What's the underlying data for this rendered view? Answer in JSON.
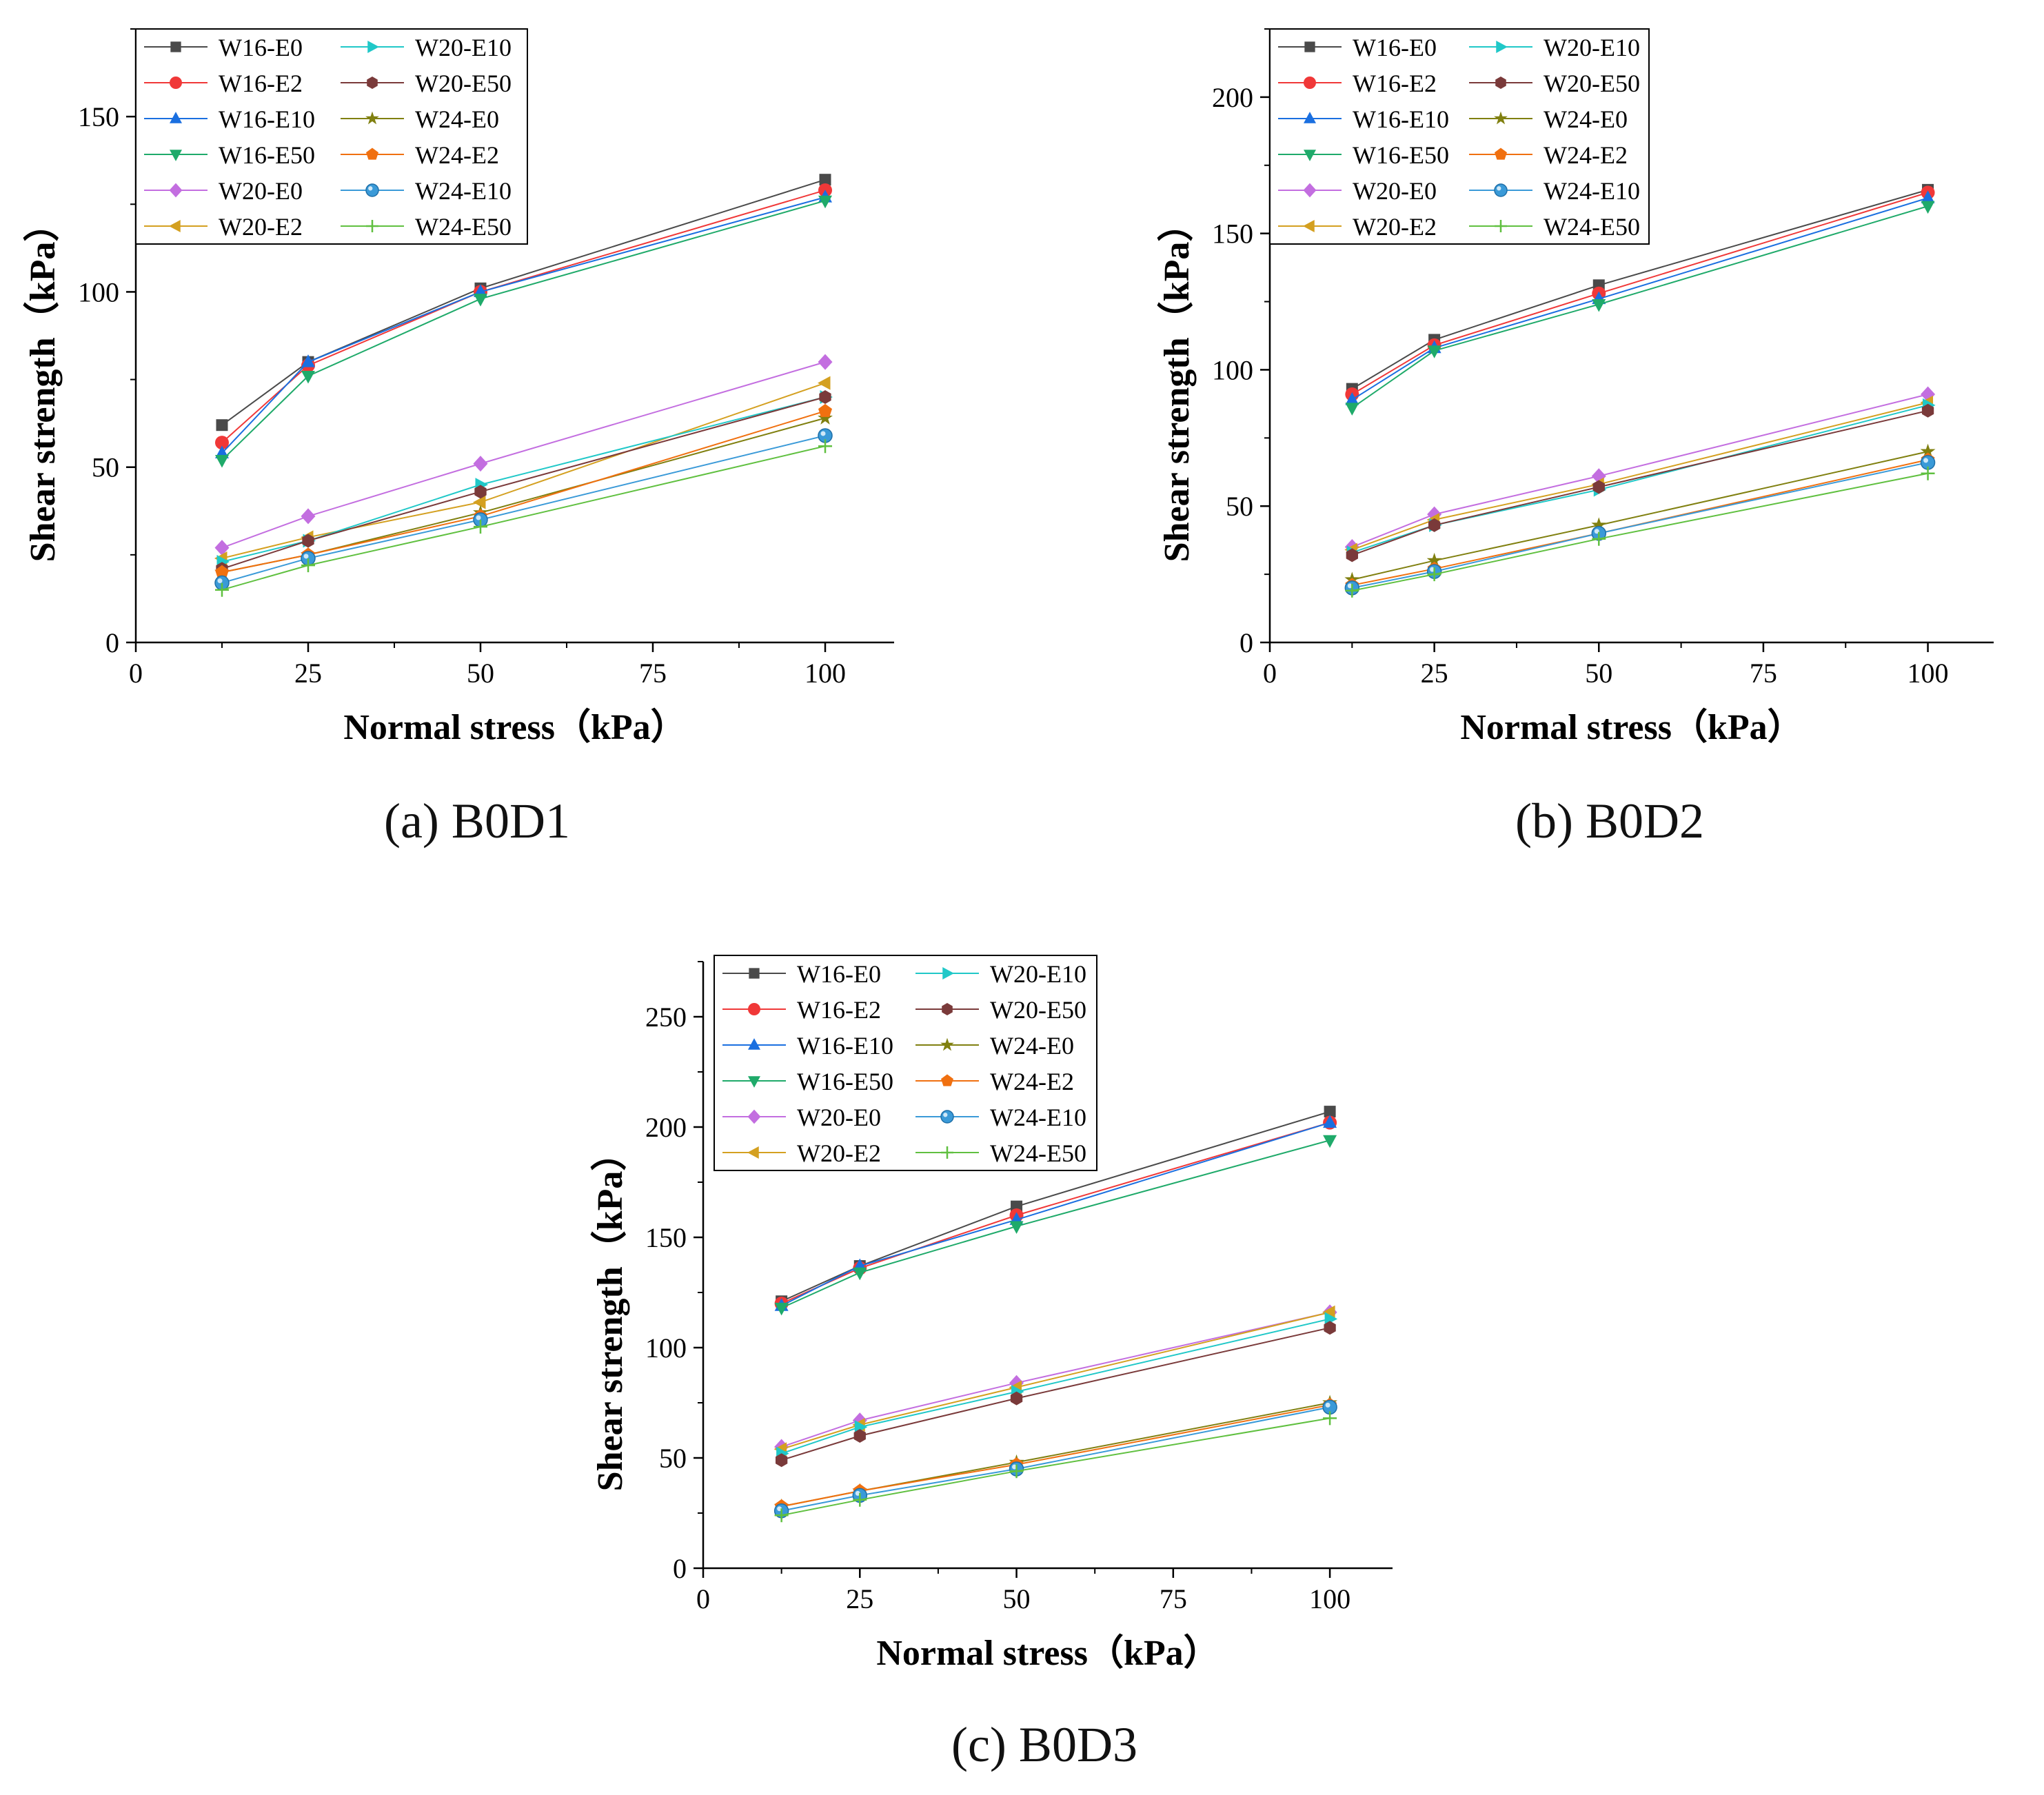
{
  "legend_labels": [
    "W16-E0",
    "W16-E2",
    "W16-E10",
    "W16-E50",
    "W20-E0",
    "W20-E2",
    "W20-E10",
    "W20-E50",
    "W24-E0",
    "W24-E2",
    "W24-E10",
    "W24-E50"
  ],
  "series_style": {
    "W16-E0": {
      "color": "#4a4a4a",
      "marker": "square"
    },
    "W16-E2": {
      "color": "#f03838",
      "marker": "circle"
    },
    "W16-E10": {
      "color": "#1a6fe0",
      "marker": "triangle-up"
    },
    "W16-E50": {
      "color": "#1faa6a",
      "marker": "triangle-down"
    },
    "W20-E0": {
      "color": "#c36ee0",
      "marker": "diamond"
    },
    "W20-E2": {
      "color": "#d4a020",
      "marker": "triangle-left"
    },
    "W20-E10": {
      "color": "#20c8c8",
      "marker": "triangle-right"
    },
    "W20-E50": {
      "color": "#7a3a3a",
      "marker": "hexagon"
    },
    "W24-E0": {
      "color": "#808010",
      "marker": "star"
    },
    "W24-E2": {
      "color": "#f07010",
      "marker": "pentagon"
    },
    "W24-E10": {
      "color": "#3a9ad8",
      "marker": "sphere"
    },
    "W24-E50": {
      "color": "#60c040",
      "marker": "plus"
    }
  },
  "chart_data": [
    {
      "id": "a",
      "type": "line",
      "caption_label": "(a)",
      "caption_name": "B0D1",
      "xlabel": "Normal stress（kPa）",
      "ylabel": "Shear strength（kPa）",
      "x": [
        12.5,
        25,
        50,
        100
      ],
      "xlim": [
        0,
        110
      ],
      "xticks": [
        0,
        25,
        50,
        75,
        100
      ],
      "ylim": [
        0,
        175
      ],
      "yticks": [
        0,
        50,
        100,
        150
      ],
      "series": [
        {
          "name": "W16-E0",
          "values": [
            62,
            80,
            101,
            132
          ]
        },
        {
          "name": "W16-E2",
          "values": [
            57,
            79,
            100,
            129
          ]
        },
        {
          "name": "W16-E10",
          "values": [
            54,
            80,
            100,
            127
          ]
        },
        {
          "name": "W16-E50",
          "values": [
            52,
            76,
            98,
            126
          ]
        },
        {
          "name": "W20-E0",
          "values": [
            27,
            36,
            51,
            80
          ]
        },
        {
          "name": "W20-E2",
          "values": [
            24,
            30,
            40,
            74
          ]
        },
        {
          "name": "W20-E10",
          "values": [
            23,
            29,
            45,
            70
          ]
        },
        {
          "name": "W20-E50",
          "values": [
            21,
            29,
            43,
            70
          ]
        },
        {
          "name": "W24-E0",
          "values": [
            20,
            25,
            37,
            64
          ]
        },
        {
          "name": "W24-E2",
          "values": [
            20,
            25,
            36,
            66
          ]
        },
        {
          "name": "W24-E10",
          "values": [
            17,
            24,
            35,
            59
          ]
        },
        {
          "name": "W24-E50",
          "values": [
            15,
            22,
            33,
            56
          ]
        }
      ]
    },
    {
      "id": "b",
      "type": "line",
      "caption_label": "(b)",
      "caption_name": "B0D2",
      "xlabel": "Normal stress（kPa）",
      "ylabel": "Shear strength（kPa）",
      "x": [
        12.5,
        25,
        50,
        100
      ],
      "xlim": [
        0,
        110
      ],
      "xticks": [
        0,
        25,
        50,
        75,
        100
      ],
      "ylim": [
        0,
        225
      ],
      "yticks": [
        0,
        50,
        100,
        150,
        200
      ],
      "series": [
        {
          "name": "W16-E0",
          "values": [
            93,
            111,
            131,
            166
          ]
        },
        {
          "name": "W16-E2",
          "values": [
            91,
            109,
            128,
            165
          ]
        },
        {
          "name": "W16-E10",
          "values": [
            89,
            108,
            126,
            163
          ]
        },
        {
          "name": "W16-E50",
          "values": [
            86,
            107,
            124,
            160
          ]
        },
        {
          "name": "W20-E0",
          "values": [
            35,
            47,
            61,
            91
          ]
        },
        {
          "name": "W20-E2",
          "values": [
            34,
            45,
            58,
            88
          ]
        },
        {
          "name": "W20-E10",
          "values": [
            33,
            43,
            56,
            87
          ]
        },
        {
          "name": "W20-E50",
          "values": [
            32,
            43,
            57,
            85
          ]
        },
        {
          "name": "W24-E0",
          "values": [
            23,
            30,
            43,
            70
          ]
        },
        {
          "name": "W24-E2",
          "values": [
            21,
            27,
            40,
            67
          ]
        },
        {
          "name": "W24-E10",
          "values": [
            20,
            26,
            40,
            66
          ]
        },
        {
          "name": "W24-E50",
          "values": [
            19,
            25,
            38,
            62
          ]
        }
      ]
    },
    {
      "id": "c",
      "type": "line",
      "caption_label": "(c)",
      "caption_name": "B0D3",
      "xlabel": "Normal stress（kPa）",
      "ylabel": "Shear strength（kPa）",
      "x": [
        12.5,
        25,
        50,
        100
      ],
      "xlim": [
        0,
        110
      ],
      "xticks": [
        0,
        25,
        50,
        75,
        100
      ],
      "ylim": [
        0,
        275
      ],
      "yticks": [
        0,
        50,
        100,
        150,
        200,
        250
      ],
      "series": [
        {
          "name": "W16-E0",
          "values": [
            121,
            137,
            164,
            207
          ]
        },
        {
          "name": "W16-E2",
          "values": [
            120,
            136,
            160,
            202
          ]
        },
        {
          "name": "W16-E10",
          "values": [
            119,
            137,
            158,
            202
          ]
        },
        {
          "name": "W16-E50",
          "values": [
            118,
            134,
            155,
            194
          ]
        },
        {
          "name": "W20-E0",
          "values": [
            55,
            67,
            84,
            116
          ]
        },
        {
          "name": "W20-E2",
          "values": [
            54,
            65,
            82,
            116
          ]
        },
        {
          "name": "W20-E10",
          "values": [
            52,
            64,
            80,
            113
          ]
        },
        {
          "name": "W20-E50",
          "values": [
            49,
            60,
            77,
            109
          ]
        },
        {
          "name": "W24-E0",
          "values": [
            28,
            35,
            48,
            75
          ]
        },
        {
          "name": "W24-E2",
          "values": [
            28,
            35,
            47,
            74
          ]
        },
        {
          "name": "W24-E10",
          "values": [
            26,
            33,
            45,
            73
          ]
        },
        {
          "name": "W24-E50",
          "values": [
            24,
            31,
            44,
            68
          ]
        }
      ]
    }
  ]
}
